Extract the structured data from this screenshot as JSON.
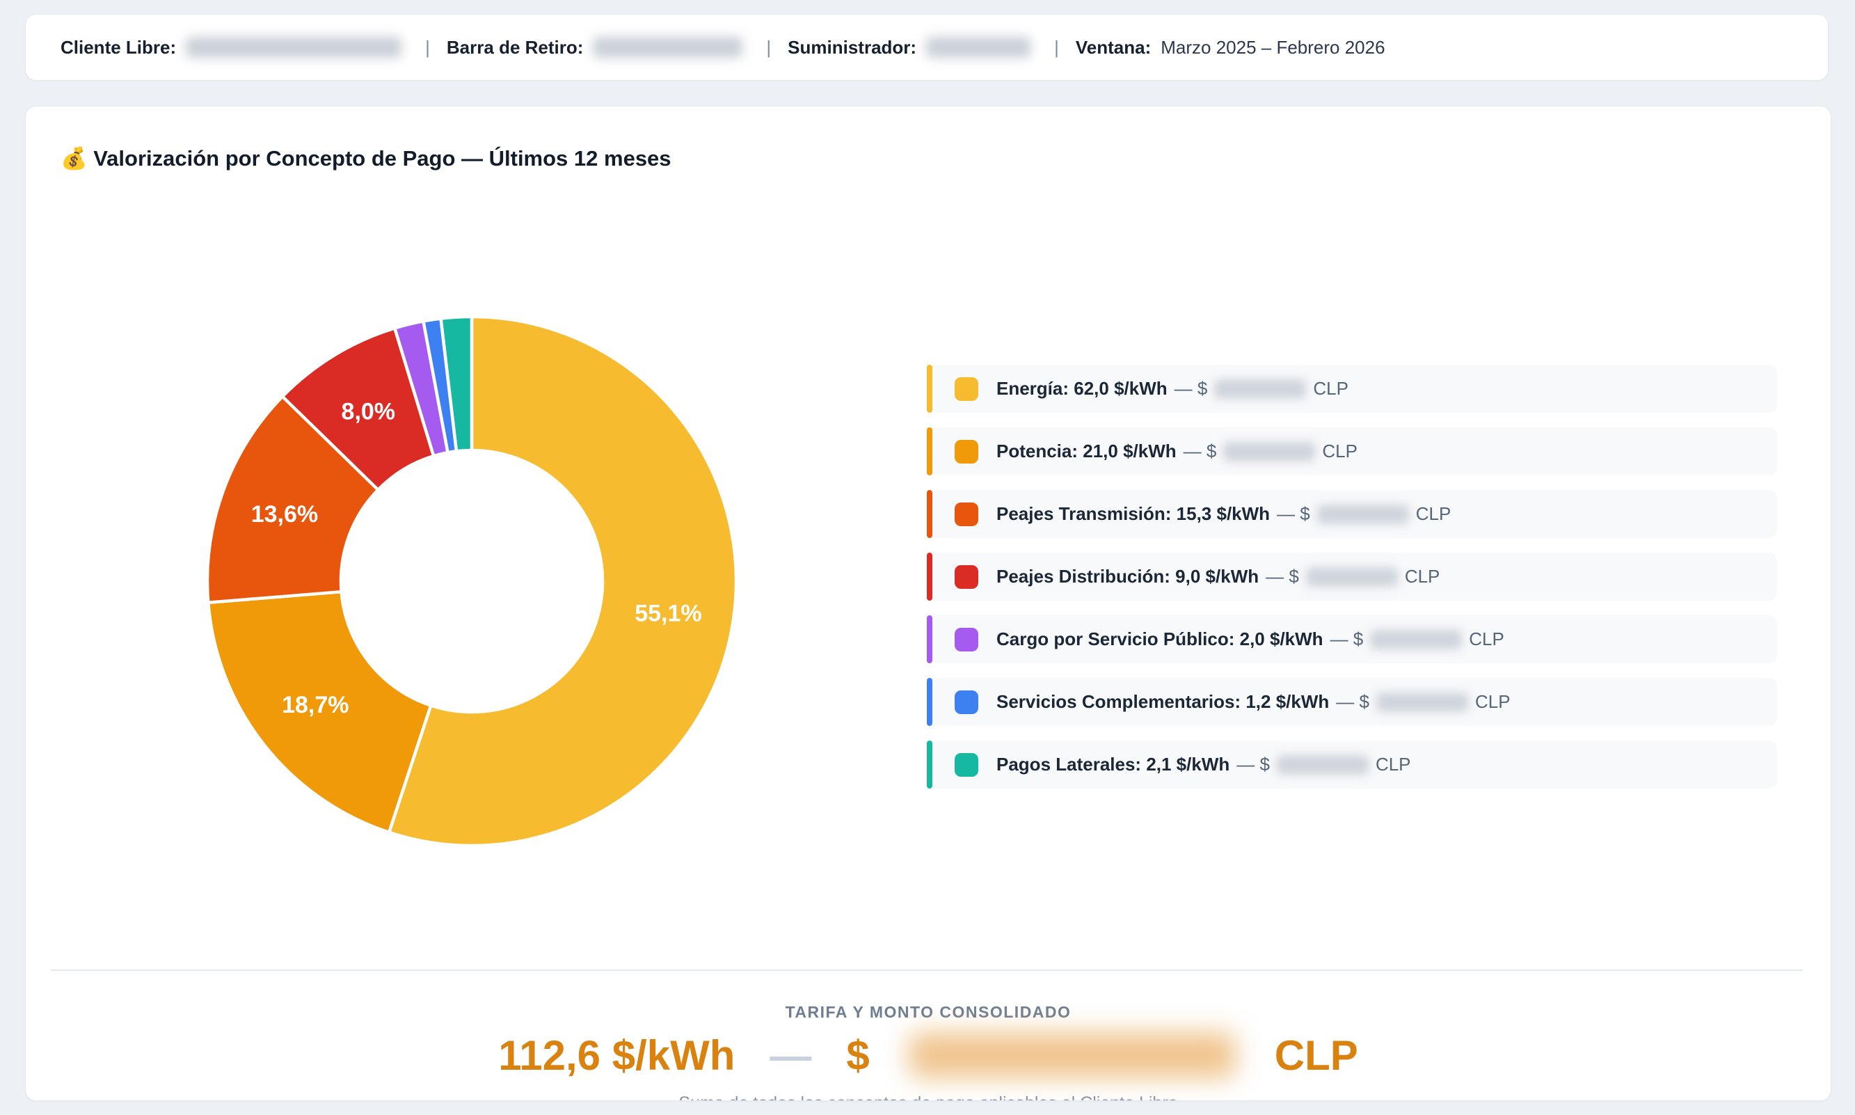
{
  "header": {
    "client_label": "Cliente Libre:",
    "bar_label": "Barra de Retiro:",
    "supplier_label": "Suministrador:",
    "window_label": "Ventana:",
    "window_value": "Marzo 2025 – Febrero 2026",
    "separator": "|"
  },
  "card": {
    "title": "💰 Valorización por Concepto de Pago — Últimos 12 meses"
  },
  "chart_data": {
    "type": "pie",
    "style": "donut",
    "title": "Valorización por Concepto de Pago — Últimos 12 meses",
    "unit": "$/kWh",
    "categories": [
      "Energía",
      "Potencia",
      "Peajes Transmisión",
      "Peajes Distribución",
      "Cargo por Servicio Público",
      "Servicios Complementarios",
      "Pagos Laterales"
    ],
    "values": [
      62.0,
      21.0,
      15.3,
      9.0,
      2.0,
      1.2,
      2.1
    ],
    "percent_labels": [
      "55,1%",
      "18,7%",
      "13,6%",
      "8,0%",
      "",
      "",
      ""
    ],
    "percentages": [
      55.1,
      18.7,
      13.6,
      8.0,
      1.8,
      1.1,
      1.9
    ],
    "colors": [
      "#F6BB2E",
      "#F09A0A",
      "#E8560E",
      "#DA2B25",
      "#A55AF0",
      "#3D80F2",
      "#16B8A2"
    ],
    "total_value": 112.6,
    "currency": "CLP",
    "legend_position": "right",
    "start_angle_deg": 0,
    "direction": "clockwise"
  },
  "legend": {
    "joiner": "— $",
    "currency": "CLP",
    "items": [
      {
        "label": "Energía:",
        "tariff": "62,0 $/kWh",
        "color": "#F6BB2E"
      },
      {
        "label": "Potencia:",
        "tariff": "21,0 $/kWh",
        "color": "#F09A0A"
      },
      {
        "label": "Peajes Transmisión:",
        "tariff": "15,3 $/kWh",
        "color": "#E8560E"
      },
      {
        "label": "Peajes Distribución:",
        "tariff": "9,0 $/kWh",
        "color": "#DA2B25"
      },
      {
        "label": "Cargo por Servicio Público:",
        "tariff": "2,0 $/kWh",
        "color": "#A55AF0"
      },
      {
        "label": "Servicios Complementarios:",
        "tariff": "1,2 $/kWh",
        "color": "#3D80F2"
      },
      {
        "label": "Pagos Laterales:",
        "tariff": "2,1 $/kWh",
        "color": "#16B8A2"
      }
    ]
  },
  "footer": {
    "label": "TARIFA Y MONTO CONSOLIDADO",
    "tariff": "112,6 $/kWh",
    "dash": "—",
    "currency_symbol": "$",
    "currency": "CLP",
    "caption": "Suma de todos los conceptos de pago aplicables al Cliente Libre"
  }
}
